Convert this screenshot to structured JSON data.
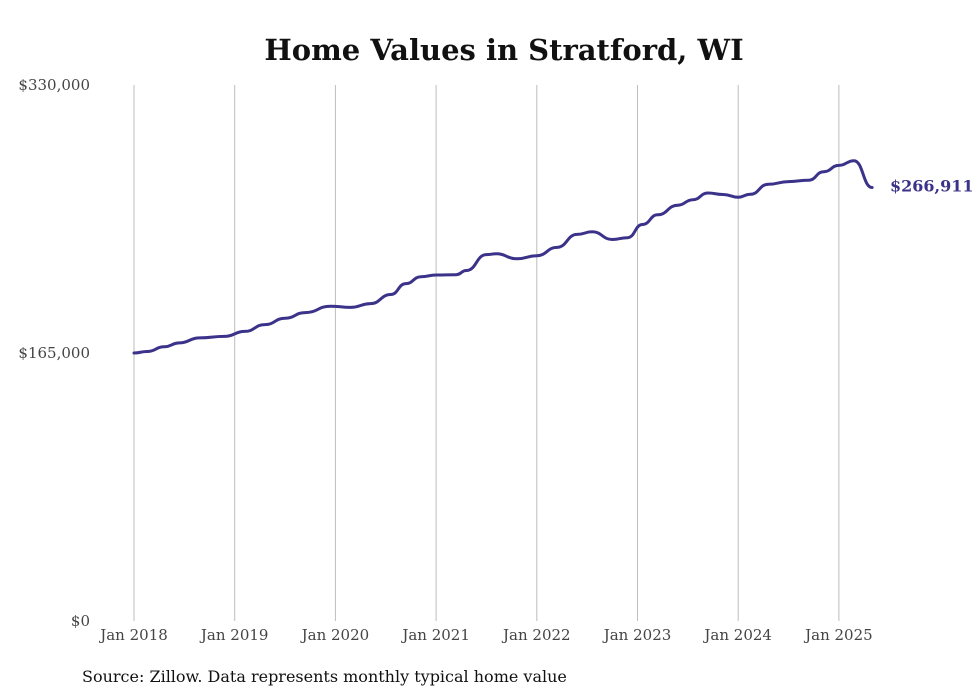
{
  "chart_data": {
    "type": "line",
    "title": "Home Values in Stratford, WI",
    "xlabel": "",
    "ylabel": "",
    "ylim": [
      0,
      330000
    ],
    "yticks": [
      {
        "value": 0,
        "label": "$0"
      },
      {
        "value": 165000,
        "label": "$165,000"
      },
      {
        "value": 330000,
        "label": "$330,000"
      }
    ],
    "xticks": [
      {
        "value": 2018,
        "label": "Jan 2018"
      },
      {
        "value": 2019,
        "label": "Jan 2019"
      },
      {
        "value": 2020,
        "label": "Jan 2020"
      },
      {
        "value": 2021,
        "label": "Jan 2021"
      },
      {
        "value": 2022,
        "label": "Jan 2022"
      },
      {
        "value": 2023,
        "label": "Jan 2023"
      },
      {
        "value": 2024,
        "label": "Jan 2024"
      },
      {
        "value": 2025,
        "label": "Jan 2025"
      }
    ],
    "xlim": [
      2018,
      2025.33
    ],
    "grid": {
      "vertical": true,
      "horizontal": false
    },
    "line_color": "#3b3289",
    "end_label": "$266,911",
    "series": [
      {
        "x": [
          2018.0,
          2018.13,
          2018.3,
          2018.45,
          2018.65,
          2018.9,
          2019.1,
          2019.3,
          2019.5,
          2019.7,
          2019.95,
          2020.15,
          2020.35,
          2020.55,
          2020.7,
          2020.85,
          2021.0,
          2021.2,
          2021.3,
          2021.5,
          2021.6,
          2021.8,
          2022.0,
          2022.2,
          2022.4,
          2022.55,
          2022.75,
          2022.9,
          2023.05,
          2023.2,
          2023.4,
          2023.55,
          2023.7,
          2023.85,
          2024.0,
          2024.12,
          2024.3,
          2024.5,
          2024.7,
          2024.85,
          2025.0,
          2025.15,
          2025.33
        ],
        "y": [
          165000,
          165900,
          168800,
          171200,
          174300,
          175200,
          178300,
          182500,
          186400,
          189900,
          193800,
          193100,
          195400,
          201000,
          207700,
          212000,
          213000,
          213200,
          215800,
          225600,
          226100,
          223000,
          224900,
          230000,
          238000,
          239600,
          234900,
          236000,
          244100,
          250100,
          256000,
          259400,
          263500,
          262600,
          260900,
          262700,
          268900,
          270500,
          271400,
          276600,
          280500,
          283400,
          266911
        ]
      }
    ]
  },
  "source_text": "Source: Zillow. Data represents monthly typical home value"
}
